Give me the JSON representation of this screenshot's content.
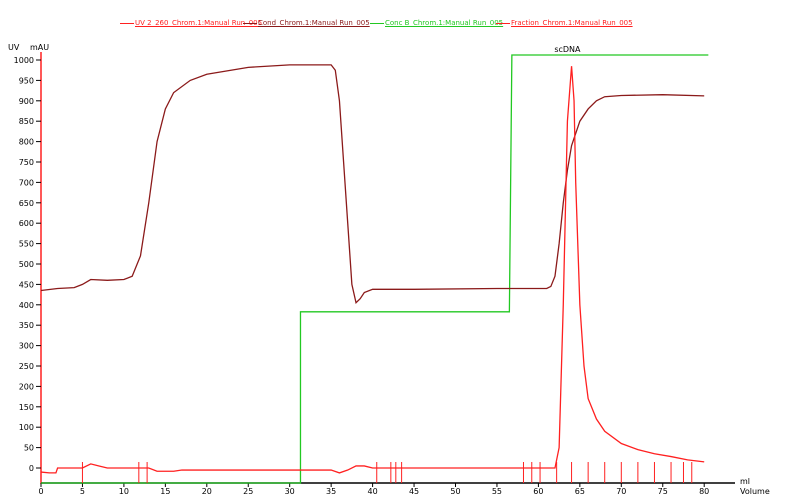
{
  "chart_data": {
    "type": "line",
    "ylabel_left": "UV",
    "ylabel_unit": "mAU",
    "xlabel_unit": "ml",
    "xlabel": "Volume",
    "xlim": [
      0,
      81
    ],
    "ylim": [
      -37,
      1010
    ],
    "xticks": [
      0,
      5,
      10,
      15,
      20,
      25,
      30,
      35,
      40,
      45,
      50,
      55,
      60,
      65,
      70,
      75,
      80
    ],
    "yticks": [
      0,
      50,
      100,
      150,
      200,
      250,
      300,
      350,
      400,
      450,
      500,
      550,
      600,
      650,
      700,
      750,
      800,
      850,
      900,
      950,
      1000
    ],
    "annotation": {
      "text": "scDNA",
      "x": 63.5
    },
    "series": [
      {
        "name": "UV 2_260_Chrom.1:Manual Run_005",
        "color": "#ff2020",
        "points": [
          [
            0,
            -10
          ],
          [
            1,
            -12
          ],
          [
            1.8,
            -12
          ],
          [
            2,
            0
          ],
          [
            5,
            0
          ],
          [
            6,
            10
          ],
          [
            7,
            5
          ],
          [
            8,
            0
          ],
          [
            13,
            0
          ],
          [
            14,
            -8
          ],
          [
            16,
            -8
          ],
          [
            17,
            -5
          ],
          [
            35,
            -5
          ],
          [
            36,
            -12
          ],
          [
            37,
            -5
          ],
          [
            38,
            5
          ],
          [
            39,
            5
          ],
          [
            40,
            0
          ],
          [
            62,
            0
          ],
          [
            62.5,
            50
          ],
          [
            63,
            400
          ],
          [
            63.5,
            850
          ],
          [
            64,
            985
          ],
          [
            64.3,
            900
          ],
          [
            64.5,
            700
          ],
          [
            65,
            400
          ],
          [
            65.5,
            250
          ],
          [
            66,
            170
          ],
          [
            67,
            120
          ],
          [
            68,
            90
          ],
          [
            70,
            60
          ],
          [
            72,
            45
          ],
          [
            74,
            35
          ],
          [
            76,
            28
          ],
          [
            78,
            20
          ],
          [
            80,
            15
          ]
        ]
      },
      {
        "name": "Cond_Chrom.1:Manual Run_005",
        "color": "#8b1a1a",
        "points": [
          [
            0,
            435
          ],
          [
            2,
            440
          ],
          [
            4,
            442
          ],
          [
            5,
            450
          ],
          [
            6,
            462
          ],
          [
            8,
            460
          ],
          [
            10,
            462
          ],
          [
            11,
            470
          ],
          [
            12,
            520
          ],
          [
            13,
            650
          ],
          [
            14,
            800
          ],
          [
            15,
            880
          ],
          [
            16,
            920
          ],
          [
            18,
            950
          ],
          [
            20,
            965
          ],
          [
            25,
            982
          ],
          [
            30,
            988
          ],
          [
            35,
            988
          ],
          [
            35.5,
            975
          ],
          [
            36,
            900
          ],
          [
            36.5,
            750
          ],
          [
            37,
            600
          ],
          [
            37.5,
            450
          ],
          [
            38,
            405
          ],
          [
            38.5,
            415
          ],
          [
            39,
            430
          ],
          [
            40,
            438
          ],
          [
            45,
            438
          ],
          [
            55,
            440
          ],
          [
            61,
            440
          ],
          [
            61.5,
            445
          ],
          [
            62,
            470
          ],
          [
            62.5,
            550
          ],
          [
            63,
            650
          ],
          [
            63.5,
            730
          ],
          [
            64,
            790
          ],
          [
            65,
            850
          ],
          [
            66,
            880
          ],
          [
            67,
            900
          ],
          [
            68,
            910
          ],
          [
            70,
            913
          ],
          [
            75,
            915
          ],
          [
            80,
            912
          ]
        ]
      },
      {
        "name": "Conc B_Chrom.1:Manual Run_005",
        "color": "#22c822",
        "unit": "%",
        "points": [
          [
            0,
            0
          ],
          [
            31.3,
            0
          ],
          [
            31.3,
            40
          ],
          [
            56.5,
            40
          ],
          [
            56.8,
            100
          ],
          [
            80.5,
            100
          ]
        ]
      },
      {
        "name": "Fraction_Chrom.1:Manual Run_005",
        "color": "#ff2020",
        "fraction_marks": [
          5,
          11.8,
          12.8,
          40.5,
          42.2,
          42.8,
          43.5,
          58.2,
          59.2,
          60.2,
          62.2,
          64,
          66,
          68,
          70,
          72,
          74,
          76,
          77.5,
          78.5
        ]
      }
    ]
  }
}
